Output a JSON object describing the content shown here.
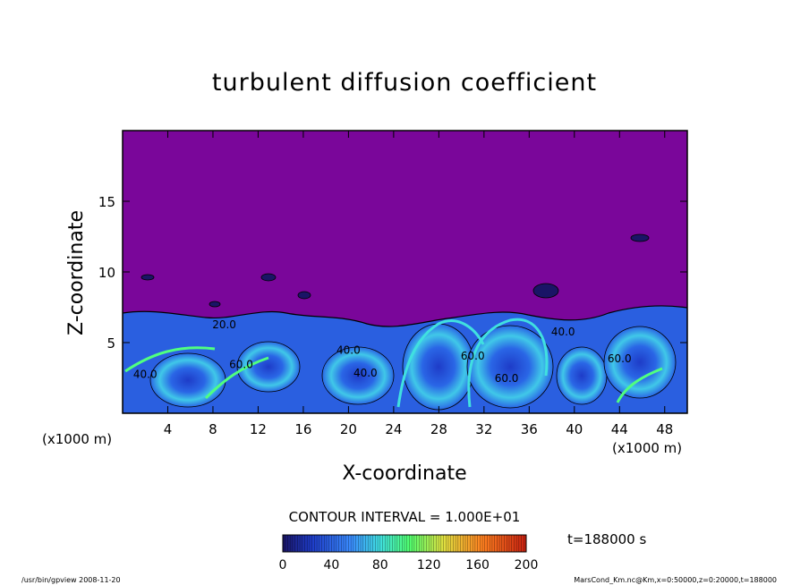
{
  "chart_data": {
    "type": "heatmap",
    "title": "turbulent diffusion coefficient",
    "xlabel": "X-coordinate",
    "ylabel": "Z-coordinate",
    "x_unit_left": "(x1000 m)",
    "x_unit_right": "(x1000 m)",
    "xlim": [
      0,
      50
    ],
    "ylim": [
      0,
      20
    ],
    "x_ticks": [
      4,
      8,
      12,
      16,
      20,
      24,
      28,
      32,
      36,
      40,
      44,
      48
    ],
    "y_ticks": [
      5,
      10,
      15
    ],
    "contour_interval_text": "CONTOUR INTERVAL = 1.000E+01",
    "time_text": "t=188000 s",
    "colorbar": {
      "range": [
        0,
        200
      ],
      "ticks": [
        0,
        40,
        80,
        120,
        160,
        200
      ],
      "colors": [
        "#1a1466",
        "#1e3cc8",
        "#3a8cff",
        "#40e0e0",
        "#50ff70",
        "#e0e040",
        "#ff8020",
        "#c82010"
      ]
    },
    "contour_labels": [
      {
        "text": "20.0",
        "x": 9,
        "y": 6.0
      },
      {
        "text": "60.0",
        "x": 10.5,
        "y": 3.2
      },
      {
        "text": "40.0",
        "x": 20,
        "y": 4.2
      },
      {
        "text": "40.0",
        "x": 21.5,
        "y": 2.6
      },
      {
        "text": "60.0",
        "x": 31,
        "y": 3.8
      },
      {
        "text": "40.0",
        "x": 39,
        "y": 5.5
      },
      {
        "text": "60.0",
        "x": 44,
        "y": 3.6
      },
      {
        "text": "60.0",
        "x": 34,
        "y": 2.2
      },
      {
        "text": "40.0",
        "x": 2,
        "y": 2.5
      }
    ],
    "background_value_color": "#7a069a",
    "turbulent_layer_top": 7
  },
  "footer": {
    "left": "/usr/bin/gpview   2008-11-20",
    "right": "MarsCond_Km.nc@Km,x=0:50000,z=0:20000,t=188000"
  }
}
